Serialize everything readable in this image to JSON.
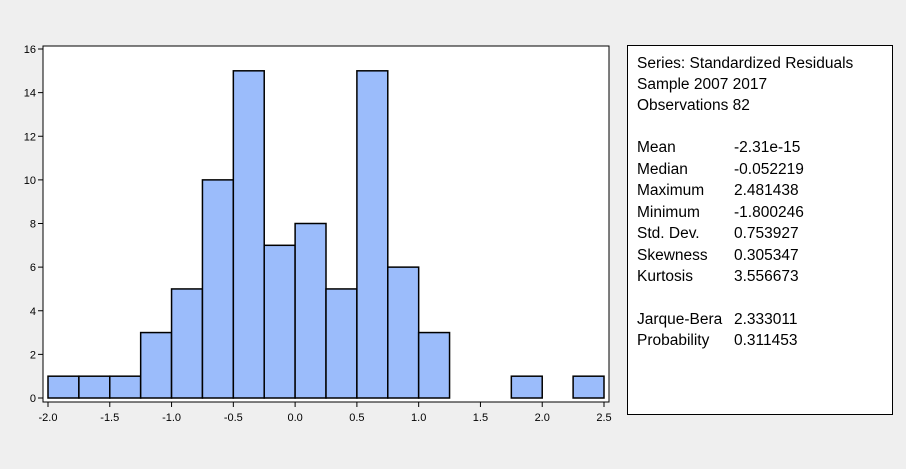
{
  "chart_data": {
    "type": "bar",
    "bin_edges": [
      -2.0,
      -1.75,
      -1.5,
      -1.25,
      -1.0,
      -0.75,
      -0.5,
      -0.25,
      0.0,
      0.25,
      0.5,
      0.75,
      1.0,
      1.25,
      1.5,
      1.75,
      2.0,
      2.25,
      2.5
    ],
    "values": [
      1,
      1,
      1,
      3,
      5,
      10,
      15,
      7,
      8,
      5,
      15,
      6,
      3,
      0,
      0,
      1,
      0,
      1
    ],
    "x_ticks": [
      "-2.0",
      "-1.5",
      "-1.0",
      "-0.5",
      "0.0",
      "0.5",
      "1.0",
      "1.5",
      "2.0",
      "2.5"
    ],
    "y_ticks": [
      "0",
      "2",
      "4",
      "6",
      "8",
      "10",
      "12",
      "14",
      "16"
    ],
    "xlim": [
      -2.0,
      2.5
    ],
    "ylim": [
      0,
      16
    ],
    "grid": false,
    "bar_color": "#9bbcfb",
    "bar_edge_color": "#000000"
  },
  "stats": {
    "series_line": "Series: Standardized Residuals",
    "sample_line": "Sample 2007 2017",
    "observations_line": "Observations 82",
    "rows": [
      {
        "label": "Mean",
        "value": "-2.31e-15"
      },
      {
        "label": "Median",
        "value": "-0.052219"
      },
      {
        "label": "Maximum",
        "value": "2.481438"
      },
      {
        "label": "Minimum",
        "value": "-1.800246"
      },
      {
        "label": "Std. Dev.",
        "value": "0.753927"
      },
      {
        "label": "Skewness",
        "value": "0.305347"
      },
      {
        "label": "Kurtosis",
        "value": "3.556673"
      }
    ],
    "tests": [
      {
        "label": "Jarque-Bera",
        "value": "2.333011"
      },
      {
        "label": "Probability",
        "value": "0.311453"
      }
    ]
  }
}
